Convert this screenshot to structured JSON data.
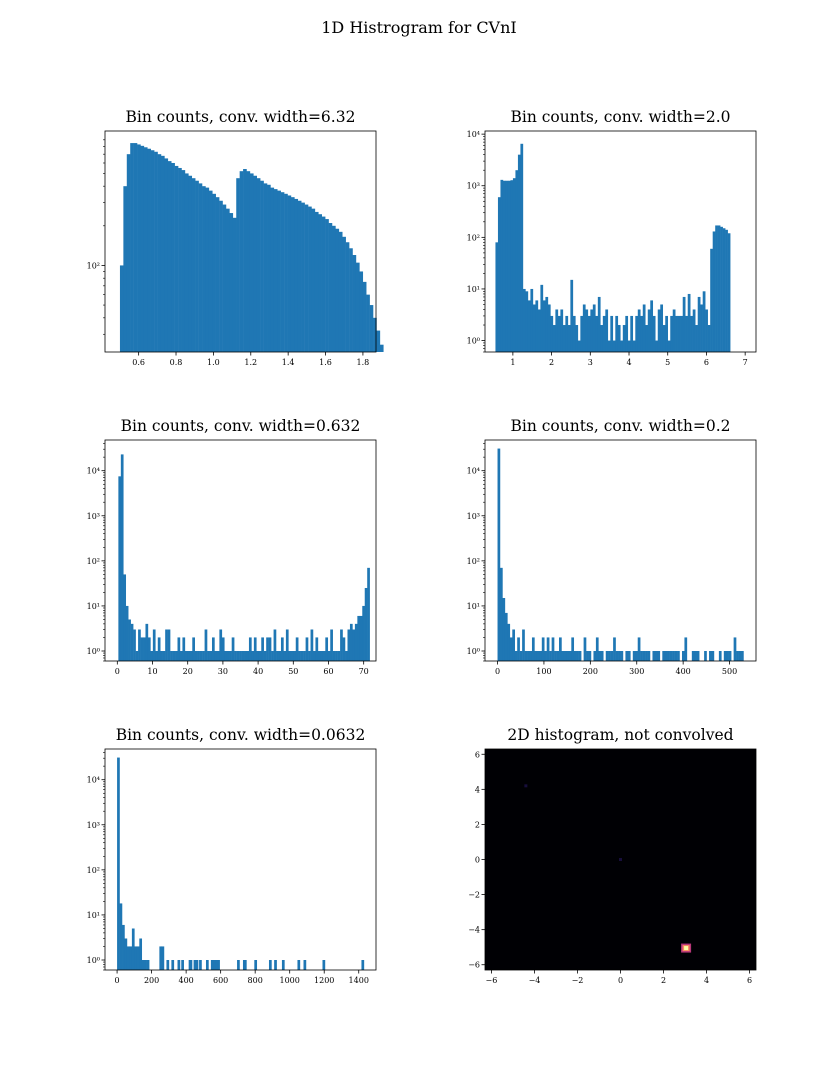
{
  "figure": {
    "title": "1D Histrogram for CVnI"
  },
  "colors": {
    "bar": "#1f77b4",
    "axes": "#000000",
    "heat_bg": "#000004",
    "heat_hot": "#fcffa4"
  },
  "chart_data": [
    {
      "type": "bar",
      "title": "Bin counts, conv. width=6.32",
      "yscale": "log",
      "xlim": [
        0.42,
        1.87
      ],
      "ylim": [
        22,
        1050
      ],
      "xticks": [
        0.6,
        0.8,
        1.0,
        1.2,
        1.4,
        1.6,
        1.8
      ],
      "xtick_labels": [
        "0.6",
        "0.8",
        "1.0",
        "1.2",
        "1.4",
        "1.6",
        "1.8"
      ],
      "yticks": [
        100
      ],
      "ytick_labels": [
        "10²"
      ],
      "bin_start": 0.5,
      "bin_width": 0.0183,
      "values": [
        100,
        400,
        700,
        850,
        850,
        830,
        810,
        790,
        770,
        750,
        730,
        700,
        680,
        650,
        620,
        600,
        570,
        550,
        530,
        500,
        480,
        460,
        440,
        420,
        400,
        390,
        370,
        350,
        330,
        310,
        290,
        270,
        250,
        230,
        460,
        520,
        540,
        520,
        500,
        480,
        460,
        440,
        420,
        410,
        390,
        380,
        370,
        360,
        350,
        340,
        330,
        320,
        310,
        300,
        290,
        280,
        270,
        255,
        245,
        235,
        225,
        210,
        200,
        190,
        180,
        165,
        150,
        135,
        120,
        105,
        90,
        75,
        60,
        50,
        40,
        32,
        25
      ]
    },
    {
      "type": "bar",
      "title": "Bin counts, conv. width=2.0",
      "yscale": "log",
      "xlim": [
        0.28,
        7.28
      ],
      "ylim": [
        0.6,
        11500
      ],
      "xticks": [
        1,
        2,
        3,
        4,
        5,
        6,
        7
      ],
      "xtick_labels": [
        "1",
        "2",
        "3",
        "4",
        "5",
        "6",
        "7"
      ],
      "yticks": [
        1,
        10,
        100,
        1000,
        10000
      ],
      "ytick_labels": [
        "10⁰",
        "10¹",
        "10²",
        "10³",
        "10⁴"
      ],
      "bin_start": 0.55,
      "bin_width": 0.0645,
      "values": [
        80,
        600,
        1300,
        1250,
        1250,
        1250,
        1280,
        1400,
        2000,
        4000,
        6500,
        10,
        9,
        6,
        10,
        5,
        6,
        4,
        12,
        6,
        7,
        5,
        3,
        2,
        4,
        3,
        4,
        2,
        3,
        2,
        15,
        3,
        2,
        1,
        3,
        5,
        4,
        3,
        4,
        5,
        3,
        7,
        2,
        3,
        4,
        1,
        3,
        1,
        3,
        2,
        1,
        2,
        3,
        1,
        3,
        1,
        3,
        4,
        3,
        5,
        2,
        4,
        6,
        3,
        1,
        4,
        5,
        2,
        3,
        1,
        3,
        4,
        3,
        3,
        3,
        7,
        3,
        8,
        3,
        4,
        2,
        7,
        5,
        9,
        4,
        2,
        60,
        130,
        170,
        170,
        160,
        150,
        140,
        120
      ]
    },
    {
      "type": "bar",
      "title": "Bin counts, conv. width=0.632",
      "yscale": "log",
      "xlim": [
        -3.5,
        73.5
      ],
      "ylim": [
        0.6,
        48000
      ],
      "xticks": [
        0,
        10,
        20,
        30,
        40,
        50,
        60,
        70
      ],
      "xtick_labels": [
        "0",
        "10",
        "20",
        "30",
        "40",
        "50",
        "60",
        "70"
      ],
      "yticks": [
        1,
        10,
        100,
        1000,
        10000
      ],
      "ytick_labels": [
        "10⁰",
        "10¹",
        "10²",
        "10³",
        "10⁴"
      ],
      "bin_start": 0.3,
      "bin_width": 0.7,
      "values": [
        7500,
        23000,
        50,
        10,
        5,
        4,
        3,
        1,
        3,
        2,
        2,
        4,
        2,
        1,
        3,
        1,
        2,
        1,
        1,
        3,
        3,
        1,
        1,
        1,
        2,
        1,
        2,
        1,
        1,
        1,
        2,
        1,
        1,
        1,
        1,
        3,
        1,
        1,
        2,
        1,
        1,
        3,
        2,
        1,
        1,
        1,
        2,
        1,
        1,
        1,
        1,
        1,
        1,
        2,
        1,
        2,
        1,
        1,
        2,
        1,
        2,
        2,
        1,
        3,
        1,
        1,
        2,
        1,
        3,
        1,
        1,
        1,
        2,
        1,
        1,
        1,
        2,
        1,
        3,
        1,
        2,
        1,
        1,
        1,
        2,
        1,
        3,
        1,
        1,
        1,
        3,
        2,
        1,
        3,
        4,
        3,
        4,
        6,
        6,
        10,
        25,
        70
      ]
    },
    {
      "type": "bar",
      "title": "Bin counts, conv. width=0.2",
      "yscale": "log",
      "xlim": [
        -27,
        557
      ],
      "ylim": [
        0.6,
        48000
      ],
      "xticks": [
        0,
        100,
        200,
        300,
        400,
        500
      ],
      "xtick_labels": [
        "0",
        "100",
        "200",
        "300",
        "400",
        "500"
      ],
      "yticks": [
        1,
        10,
        100,
        1000,
        10000
      ],
      "ytick_labels": [
        "10⁰",
        "10¹",
        "10²",
        "10³",
        "10⁴"
      ],
      "bin_start": 0,
      "bin_width": 5.3,
      "values": [
        31000,
        70,
        15,
        7,
        4,
        2,
        3,
        1,
        2,
        1,
        3,
        1,
        1,
        1,
        2,
        1,
        1,
        1,
        2,
        1,
        2,
        1,
        2,
        1,
        1,
        2,
        1,
        1,
        1,
        1,
        2,
        1,
        1,
        1,
        0,
        2,
        1,
        1,
        0,
        1,
        2,
        1,
        1,
        0,
        1,
        1,
        1,
        2,
        1,
        1,
        1,
        0,
        1,
        1,
        0,
        1,
        1,
        2,
        1,
        1,
        1,
        1,
        0,
        1,
        1,
        1,
        0,
        1,
        1,
        1,
        1,
        1,
        1,
        1,
        0,
        1,
        2,
        0,
        0,
        1,
        1,
        1,
        0,
        0,
        1,
        0,
        1,
        1,
        0,
        0,
        1,
        0,
        1,
        1,
        1,
        0,
        2,
        1,
        1,
        1
      ]
    },
    {
      "type": "bar",
      "title": "Bin counts, conv. width=0.0632",
      "yscale": "log",
      "xlim": [
        -70,
        1500
      ],
      "ylim": [
        0.6,
        48000
      ],
      "xticks": [
        0,
        200,
        400,
        600,
        800,
        1000,
        1200,
        1400
      ],
      "xtick_labels": [
        "0",
        "200",
        "400",
        "600",
        "800",
        "1000",
        "1200",
        "1400"
      ],
      "yticks": [
        1,
        10,
        100,
        1000,
        10000
      ],
      "ytick_labels": [
        "10⁰",
        "10¹",
        "10²",
        "10³",
        "10⁴"
      ],
      "bin_start": 0,
      "bin_width": 14.3,
      "values": [
        31000,
        18,
        6,
        3,
        2,
        2,
        5,
        2,
        2,
        3,
        1,
        1,
        1,
        0,
        0,
        0,
        0,
        0,
        2,
        0,
        1,
        0,
        1,
        0,
        0,
        0,
        1,
        0,
        0,
        1,
        0,
        1,
        0,
        0,
        0,
        0,
        0,
        0,
        1,
        1,
        1,
        0,
        0,
        0,
        0,
        0,
        0,
        0,
        0,
        0,
        0,
        1,
        0,
        0,
        0,
        0,
        0,
        0,
        0,
        0,
        0,
        0,
        0,
        0,
        0,
        0,
        0,
        0,
        0,
        0,
        0,
        0,
        0,
        0,
        0,
        0,
        0,
        0,
        0,
        0,
        0,
        0,
        0,
        0,
        0,
        0,
        0,
        0,
        0,
        0,
        0,
        0,
        0,
        0,
        0,
        0,
        0,
        0,
        0,
        1
      ],
      "extra_bars": [
        {
          "x": 245,
          "value": 2
        },
        {
          "x": 350,
          "value": 1
        },
        {
          "x": 420,
          "value": 1
        },
        {
          "x": 455,
          "value": 1
        },
        {
          "x": 475,
          "value": 1
        },
        {
          "x": 515,
          "value": 1
        },
        {
          "x": 580,
          "value": 1
        },
        {
          "x": 695,
          "value": 1
        },
        {
          "x": 735,
          "value": 1
        },
        {
          "x": 795,
          "value": 1
        },
        {
          "x": 880,
          "value": 1
        },
        {
          "x": 910,
          "value": 1
        },
        {
          "x": 955,
          "value": 1
        },
        {
          "x": 1045,
          "value": 1
        },
        {
          "x": 1080,
          "value": 1
        },
        {
          "x": 1190,
          "value": 1
        }
      ]
    },
    {
      "type": "heatmap",
      "title": "2D histogram, not convolved",
      "xlim": [
        -6.3,
        6.3
      ],
      "ylim": [
        -6.3,
        6.3
      ],
      "xticks": [
        -6,
        -4,
        -2,
        0,
        2,
        4,
        6
      ],
      "xtick_labels": [
        "−6",
        "−4",
        "−2",
        "0",
        "2",
        "4",
        "6"
      ],
      "yticks": [
        -6,
        -4,
        -2,
        0,
        2,
        4,
        6
      ],
      "ytick_labels": [
        "−6",
        "−4",
        "−2",
        "0",
        "2",
        "4",
        "6"
      ],
      "hot_spots": [
        {
          "x": 3.05,
          "y": -5.05,
          "level": 1.0
        },
        {
          "x": 0.0,
          "y": 0.0,
          "level": 0.08
        },
        {
          "x": -4.4,
          "y": 4.2,
          "level": 0.05
        }
      ]
    }
  ]
}
